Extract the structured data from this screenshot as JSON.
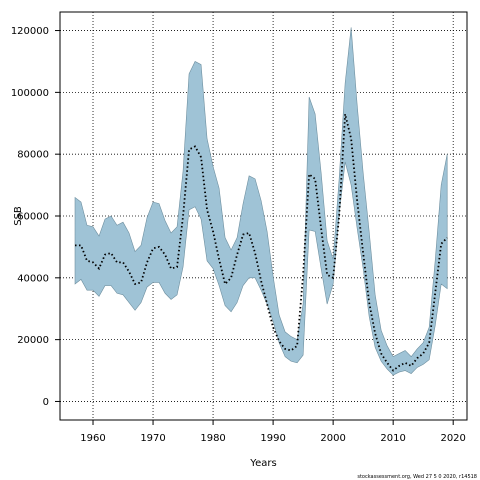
{
  "chart_data": {
    "type": "area",
    "title": "",
    "xlabel": "Years",
    "ylabel": "SSB",
    "xlim": [
      1954.5,
      2022.3
    ],
    "ylim": [
      -6000,
      126000
    ],
    "xticks": [
      1960,
      1970,
      1980,
      1990,
      2000,
      2010,
      2020
    ],
    "yticks": [
      0,
      20000,
      40000,
      60000,
      80000,
      100000,
      120000
    ],
    "grid": true,
    "legend": "none",
    "colors": {
      "band": "#9fc3d6",
      "band_edge": "#6e8f9f",
      "line": "#000000",
      "grid": "#000000"
    },
    "series": [
      {
        "role": "estimate",
        "style": "dotted",
        "x": [
          1957,
          1958,
          1959,
          1960,
          1961,
          1962,
          1963,
          1964,
          1965,
          1966,
          1967,
          1968,
          1969,
          1970,
          1971,
          1972,
          1973,
          1974,
          1975,
          1976,
          1977,
          1978,
          1979,
          1980,
          1981,
          1982,
          1983,
          1984,
          1985,
          1986,
          1987,
          1988,
          1989,
          1990,
          1991,
          1992,
          1993,
          1994,
          1995,
          1996,
          1997,
          1998,
          1999,
          2000,
          2001,
          2002,
          2003,
          2004,
          2005,
          2006,
          2007,
          2008,
          2009,
          2010,
          2011,
          2012,
          2013,
          2014,
          2015,
          2016,
          2017,
          2018,
          2019,
          2020
        ],
        "values": [
          50500,
          50500,
          45500,
          45000,
          43000,
          47500,
          48000,
          45000,
          45000,
          42000,
          38000,
          38500,
          45000,
          49500,
          50000,
          47500,
          43000,
          43500,
          60000,
          81500,
          82500,
          79000,
          62000,
          55000,
          46000,
          38000,
          40000,
          47500,
          54000,
          54500,
          48000,
          39000,
          31500,
          24000,
          19500,
          17000,
          16500,
          18000,
          41000,
          73500,
          72000,
          56000,
          41000,
          40000,
          60000,
          93000,
          85000,
          65000,
          48000,
          32000,
          22000,
          15500,
          12500,
          10000,
          11500,
          12500,
          11500,
          14000,
          15500,
          19000,
          35000,
          51000,
          53000,
          null
        ]
      },
      {
        "role": "lower",
        "x": [
          1957,
          1958,
          1959,
          1960,
          1961,
          1962,
          1963,
          1964,
          1965,
          1966,
          1967,
          1968,
          1969,
          1970,
          1971,
          1972,
          1973,
          1974,
          1975,
          1976,
          1977,
          1978,
          1979,
          1980,
          1981,
          1982,
          1983,
          1984,
          1985,
          1986,
          1987,
          1988,
          1989,
          1990,
          1991,
          1992,
          1993,
          1994,
          1995,
          1996,
          1997,
          1998,
          1999,
          2000,
          2001,
          2002,
          2003,
          2004,
          2005,
          2006,
          2007,
          2008,
          2009,
          2010,
          2011,
          2012,
          2013,
          2014,
          2015,
          2016,
          2017,
          2018,
          2019,
          2020
        ],
        "values": [
          38000,
          39500,
          36000,
          36000,
          34000,
          37500,
          37500,
          35000,
          34500,
          32000,
          29500,
          32000,
          37000,
          38500,
          38500,
          35000,
          33000,
          34500,
          43500,
          62000,
          63000,
          59000,
          45500,
          43000,
          37500,
          31000,
          29000,
          32000,
          37500,
          40000,
          40000,
          36000,
          31500,
          26000,
          19000,
          14500,
          13000,
          12500,
          15000,
          55500,
          55000,
          43000,
          31500,
          38000,
          60500,
          77500,
          70000,
          56000,
          43000,
          27500,
          17500,
          13000,
          10500,
          8500,
          9500,
          10000,
          9000,
          11000,
          12000,
          13500,
          24500,
          38000,
          36500,
          null
        ]
      },
      {
        "role": "upper",
        "x": [
          1957,
          1958,
          1959,
          1960,
          1961,
          1962,
          1963,
          1964,
          1965,
          1966,
          1967,
          1968,
          1969,
          1970,
          1971,
          1972,
          1973,
          1974,
          1975,
          1976,
          1977,
          1978,
          1979,
          1980,
          1981,
          1982,
          1983,
          1984,
          1985,
          1986,
          1987,
          1988,
          1989,
          1990,
          1991,
          1992,
          1993,
          1994,
          1995,
          1996,
          1997,
          1998,
          1999,
          2000,
          2001,
          2002,
          2003,
          2004,
          2005,
          2006,
          2007,
          2008,
          2009,
          2010,
          2011,
          2012,
          2013,
          2014,
          2015,
          2016,
          2017,
          2018,
          2019,
          2020
        ],
        "values": [
          66000,
          64500,
          57000,
          56500,
          53500,
          59000,
          60000,
          57000,
          58000,
          54500,
          48500,
          50500,
          59500,
          64500,
          64000,
          58500,
          54500,
          56500,
          74500,
          106000,
          110000,
          109000,
          85000,
          76000,
          69000,
          53000,
          49000,
          53000,
          64000,
          73000,
          72000,
          65000,
          55000,
          40500,
          28000,
          22500,
          21000,
          20000,
          31500,
          98500,
          93000,
          74000,
          52000,
          46000,
          72000,
          103000,
          121000,
          96000,
          74000,
          55000,
          34500,
          23000,
          18000,
          14500,
          15500,
          16500,
          14500,
          17000,
          19000,
          24000,
          45500,
          70000,
          80000,
          null
        ]
      }
    ]
  },
  "caption": "stockassessment.org, Wed 27 5 0 2020, r14518"
}
